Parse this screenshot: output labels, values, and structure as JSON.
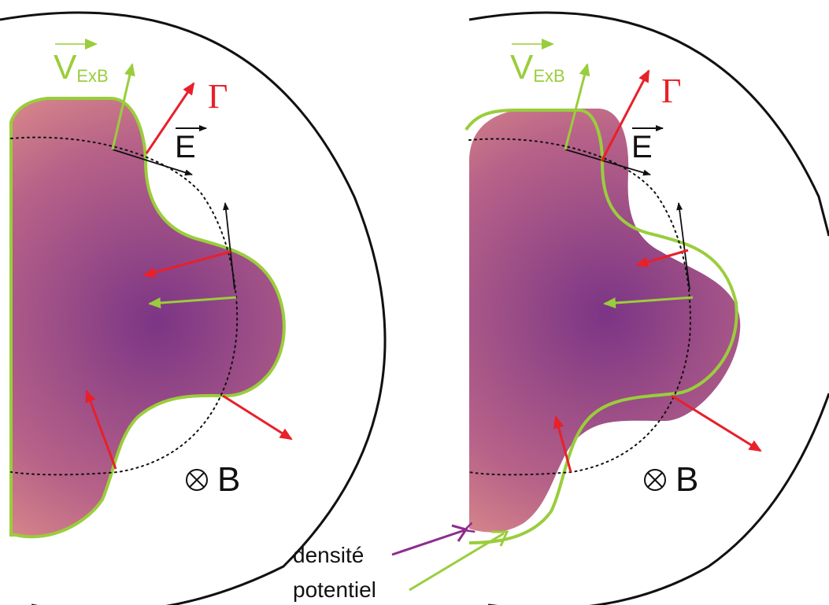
{
  "panels": [
    {
      "velocity_label": {
        "main": "V",
        "sub": "ExB"
      },
      "flux_label": "Γ",
      "field_label": "E",
      "magnetic_label": "B"
    },
    {
      "velocity_label": {
        "main": "V",
        "sub": "ExB"
      },
      "flux_label": "Γ",
      "field_label": "E",
      "magnetic_label": "B"
    }
  ],
  "legend": {
    "density": "densité",
    "potential": "potentiel"
  },
  "colors": {
    "green": "#9acd3c",
    "red": "#e8202a",
    "purple": "#8e2c8e",
    "blob_center": "#7d3a86",
    "blob_edge": "#f0a08c",
    "black": "#111111"
  }
}
